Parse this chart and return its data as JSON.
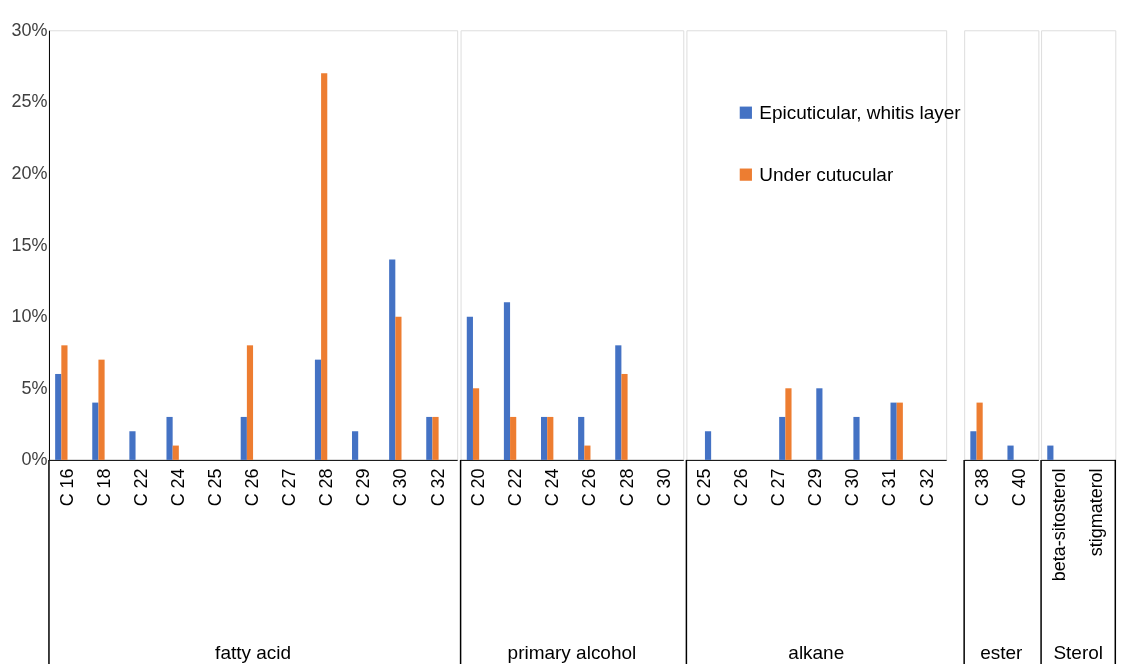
{
  "chart_data": [
    {
      "type": "bar",
      "xlabel": "fatty acid",
      "categories": [
        "C 16",
        "C 18",
        "C 22",
        "C 24",
        "C 25",
        "C 26",
        "C 27",
        "C 28",
        "C 29",
        "C 30",
        "C 32"
      ],
      "series": [
        {
          "color": "#4472c4",
          "values": [
            6,
            4,
            2,
            3,
            0,
            3,
            0,
            7,
            2,
            14,
            3
          ]
        },
        {
          "color": "#ed7d31",
          "values": [
            8,
            7,
            0,
            1,
            0,
            8,
            0,
            27,
            0,
            10,
            3
          ]
        }
      ],
      "ylim": [
        0,
        30
      ],
      "yticks": [
        {
          "value": 0,
          "label": "0%"
        },
        {
          "value": 5,
          "label": "5%"
        },
        {
          "value": 10,
          "label": "10%"
        },
        {
          "value": 15,
          "label": "15%"
        },
        {
          "value": 20,
          "label": "20%"
        },
        {
          "value": 25,
          "label": "25%"
        },
        {
          "value": 30,
          "label": "30%"
        }
      ],
      "grid": false
    },
    {
      "type": "bar",
      "xlabel": "primary alcohol",
      "categories": [
        "C 20",
        "C 22",
        "C 24",
        "C 26",
        "C 28",
        "C 30"
      ],
      "series": [
        {
          "color": "#4472c4",
          "values": [
            10,
            11,
            3,
            3,
            8,
            0
          ]
        },
        {
          "color": "#ed7d31",
          "values": [
            5,
            3,
            3,
            1,
            6,
            0
          ]
        }
      ],
      "ylim": [
        0,
        30
      ],
      "tick_labels": "x",
      "grid": false
    },
    {
      "type": "bar",
      "xlabel": "alkane",
      "categories": [
        "C 25",
        "C 26",
        "C 27",
        "C 29",
        "C 30",
        "C 31",
        "C 32"
      ],
      "series": [
        {
          "name": "Epicuticular, whitis layer",
          "color": "#4472c4",
          "values": [
            2,
            0,
            3,
            5,
            3,
            4,
            0
          ]
        },
        {
          "name": "Under cutucular",
          "color": "#ed7d31",
          "values": [
            0,
            0,
            5,
            0,
            0,
            4,
            0
          ]
        }
      ],
      "ylim": [
        0,
        30
      ],
      "tick_labels": "x",
      "legend": "top right",
      "grid": false
    },
    {
      "type": "bar",
      "xlabel": "ester",
      "categories": [
        "C 38",
        "C 40"
      ],
      "series": [
        {
          "color": "#4472c4",
          "values": [
            2,
            1
          ]
        },
        {
          "color": "#ed7d31",
          "values": [
            4,
            0
          ]
        }
      ],
      "ylim": [
        0,
        30
      ],
      "tick_labels": "x",
      "grid": false
    },
    {
      "type": "bar",
      "xlabel": "Sterol",
      "categories": [
        "beta-sitosterol",
        "stigmaterol"
      ],
      "series": [
        {
          "color": "#4472c4",
          "values": [
            1,
            0
          ]
        },
        {
          "color": "#ed7d31",
          "values": [
            0,
            0
          ]
        }
      ],
      "ylim": [
        0,
        30
      ],
      "tick_labels": "x",
      "grid": false
    }
  ]
}
